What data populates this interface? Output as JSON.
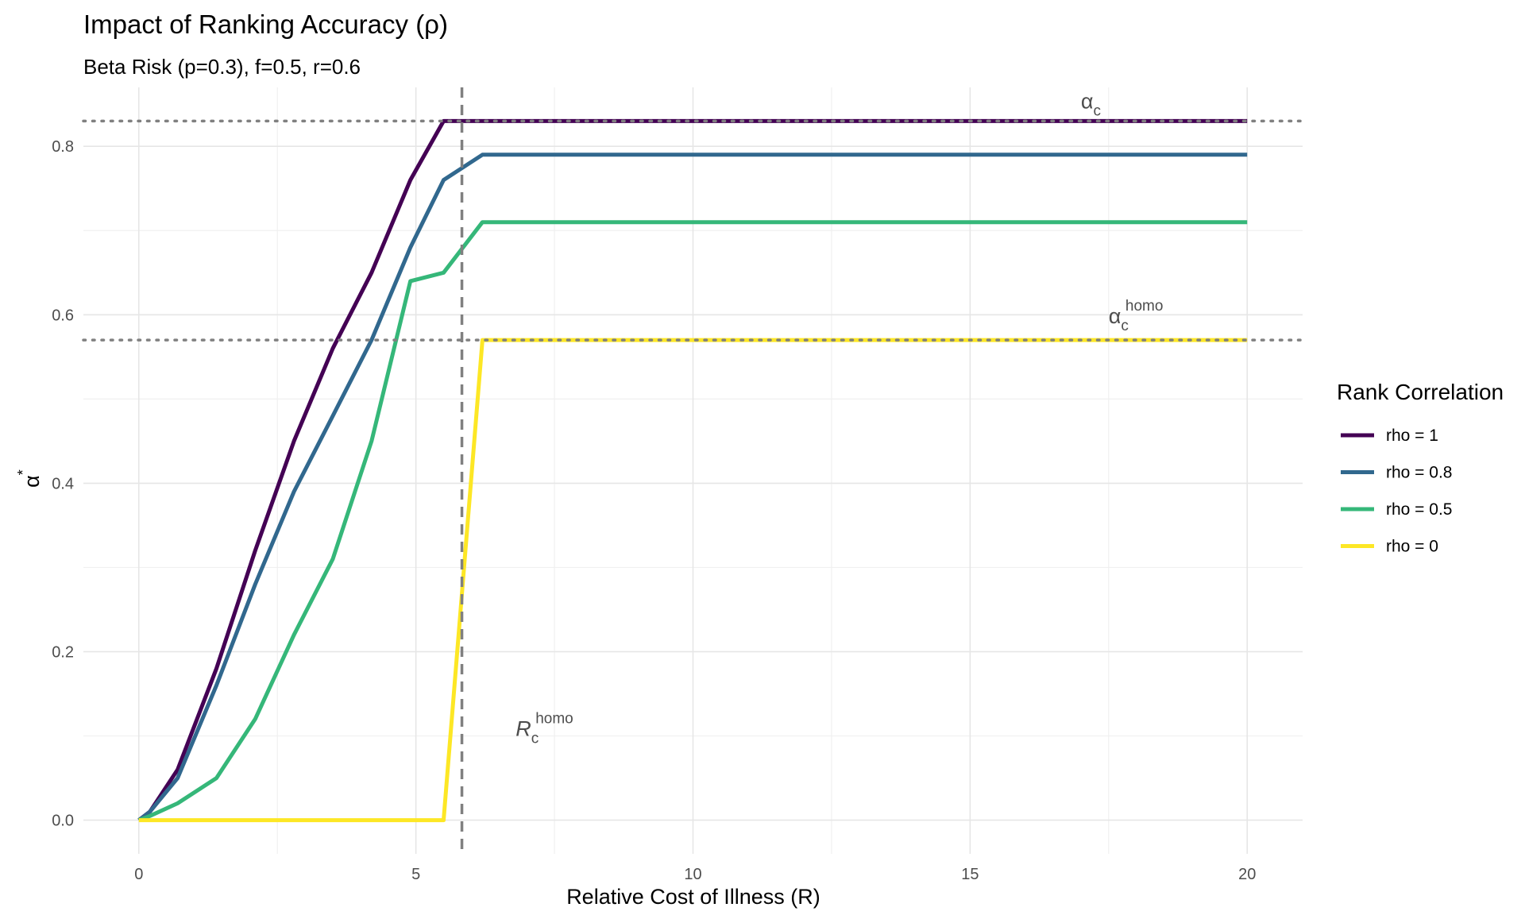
{
  "chart_data": {
    "type": "line",
    "title": "Impact of Ranking Accuracy (ρ)",
    "subtitle": "Beta Risk (p=0.3), f=0.5, r=0.6",
    "xlabel": "Relative Cost of Illness (R)",
    "ylabel": {
      "base": "α",
      "sup": "*"
    },
    "xlim": [
      -1,
      21
    ],
    "ylim": [
      -0.04,
      0.87
    ],
    "x_ticks": [
      0,
      5,
      10,
      15,
      20
    ],
    "x_tick_labels": [
      "0",
      "5",
      "10",
      "15",
      "20"
    ],
    "y_ticks": [
      0,
      0.2,
      0.4,
      0.6,
      0.8
    ],
    "y_tick_labels": [
      "0.0",
      "0.2",
      "0.4",
      "0.6",
      "0.8"
    ],
    "grid": true,
    "legend": {
      "title": "Rank Correlation",
      "position": "right"
    },
    "series": [
      {
        "name": "rho = 1",
        "color": "#440154",
        "x": [
          0,
          0.2,
          0.7,
          1.4,
          2.1,
          2.8,
          3.5,
          4.2,
          4.9,
          5.5,
          6.2,
          20
        ],
        "y": [
          0,
          0.01,
          0.06,
          0.18,
          0.32,
          0.45,
          0.56,
          0.65,
          0.76,
          0.83,
          0.83,
          0.83
        ]
      },
      {
        "name": "rho = 0.8",
        "color": "#31688e",
        "x": [
          0,
          0.2,
          0.7,
          1.4,
          2.1,
          2.8,
          3.5,
          4.2,
          4.9,
          5.5,
          6.2,
          20
        ],
        "y": [
          0,
          0.01,
          0.05,
          0.16,
          0.28,
          0.39,
          0.48,
          0.57,
          0.68,
          0.76,
          0.79,
          0.79
        ]
      },
      {
        "name": "rho = 0.5",
        "color": "#35b779",
        "x": [
          0,
          0.2,
          0.7,
          1.4,
          2.1,
          2.8,
          3.5,
          4.2,
          4.9,
          5.5,
          6.2,
          20
        ],
        "y": [
          0,
          0.005,
          0.02,
          0.05,
          0.12,
          0.22,
          0.31,
          0.45,
          0.64,
          0.65,
          0.71,
          0.71
        ]
      },
      {
        "name": "rho = 0",
        "color": "#fde725",
        "x": [
          0,
          0.7,
          1.4,
          2.1,
          2.8,
          3.5,
          4.2,
          4.9,
          5.5,
          6.2,
          20
        ],
        "y": [
          0,
          0,
          0,
          0,
          0,
          0,
          0,
          0,
          0,
          0.57,
          0.57
        ]
      }
    ],
    "reference_lines": [
      {
        "type": "horizontal",
        "value": 0.83,
        "style": "dotted",
        "color": "#808080"
      },
      {
        "type": "horizontal",
        "value": 0.57,
        "style": "dotted",
        "color": "#808080"
      },
      {
        "type": "vertical",
        "value": 5.83,
        "style": "dashed",
        "color": "#808080"
      }
    ],
    "annotations": [
      {
        "base": "α",
        "sub": "c",
        "sup": "",
        "x": 17,
        "y": 0.845
      },
      {
        "base": "α",
        "sub": "c",
        "sup": "homo",
        "x": 17.5,
        "y": 0.59
      },
      {
        "base": "R",
        "sub": "c",
        "sup": "homo",
        "x": 6.8,
        "y": 0.1
      }
    ]
  }
}
